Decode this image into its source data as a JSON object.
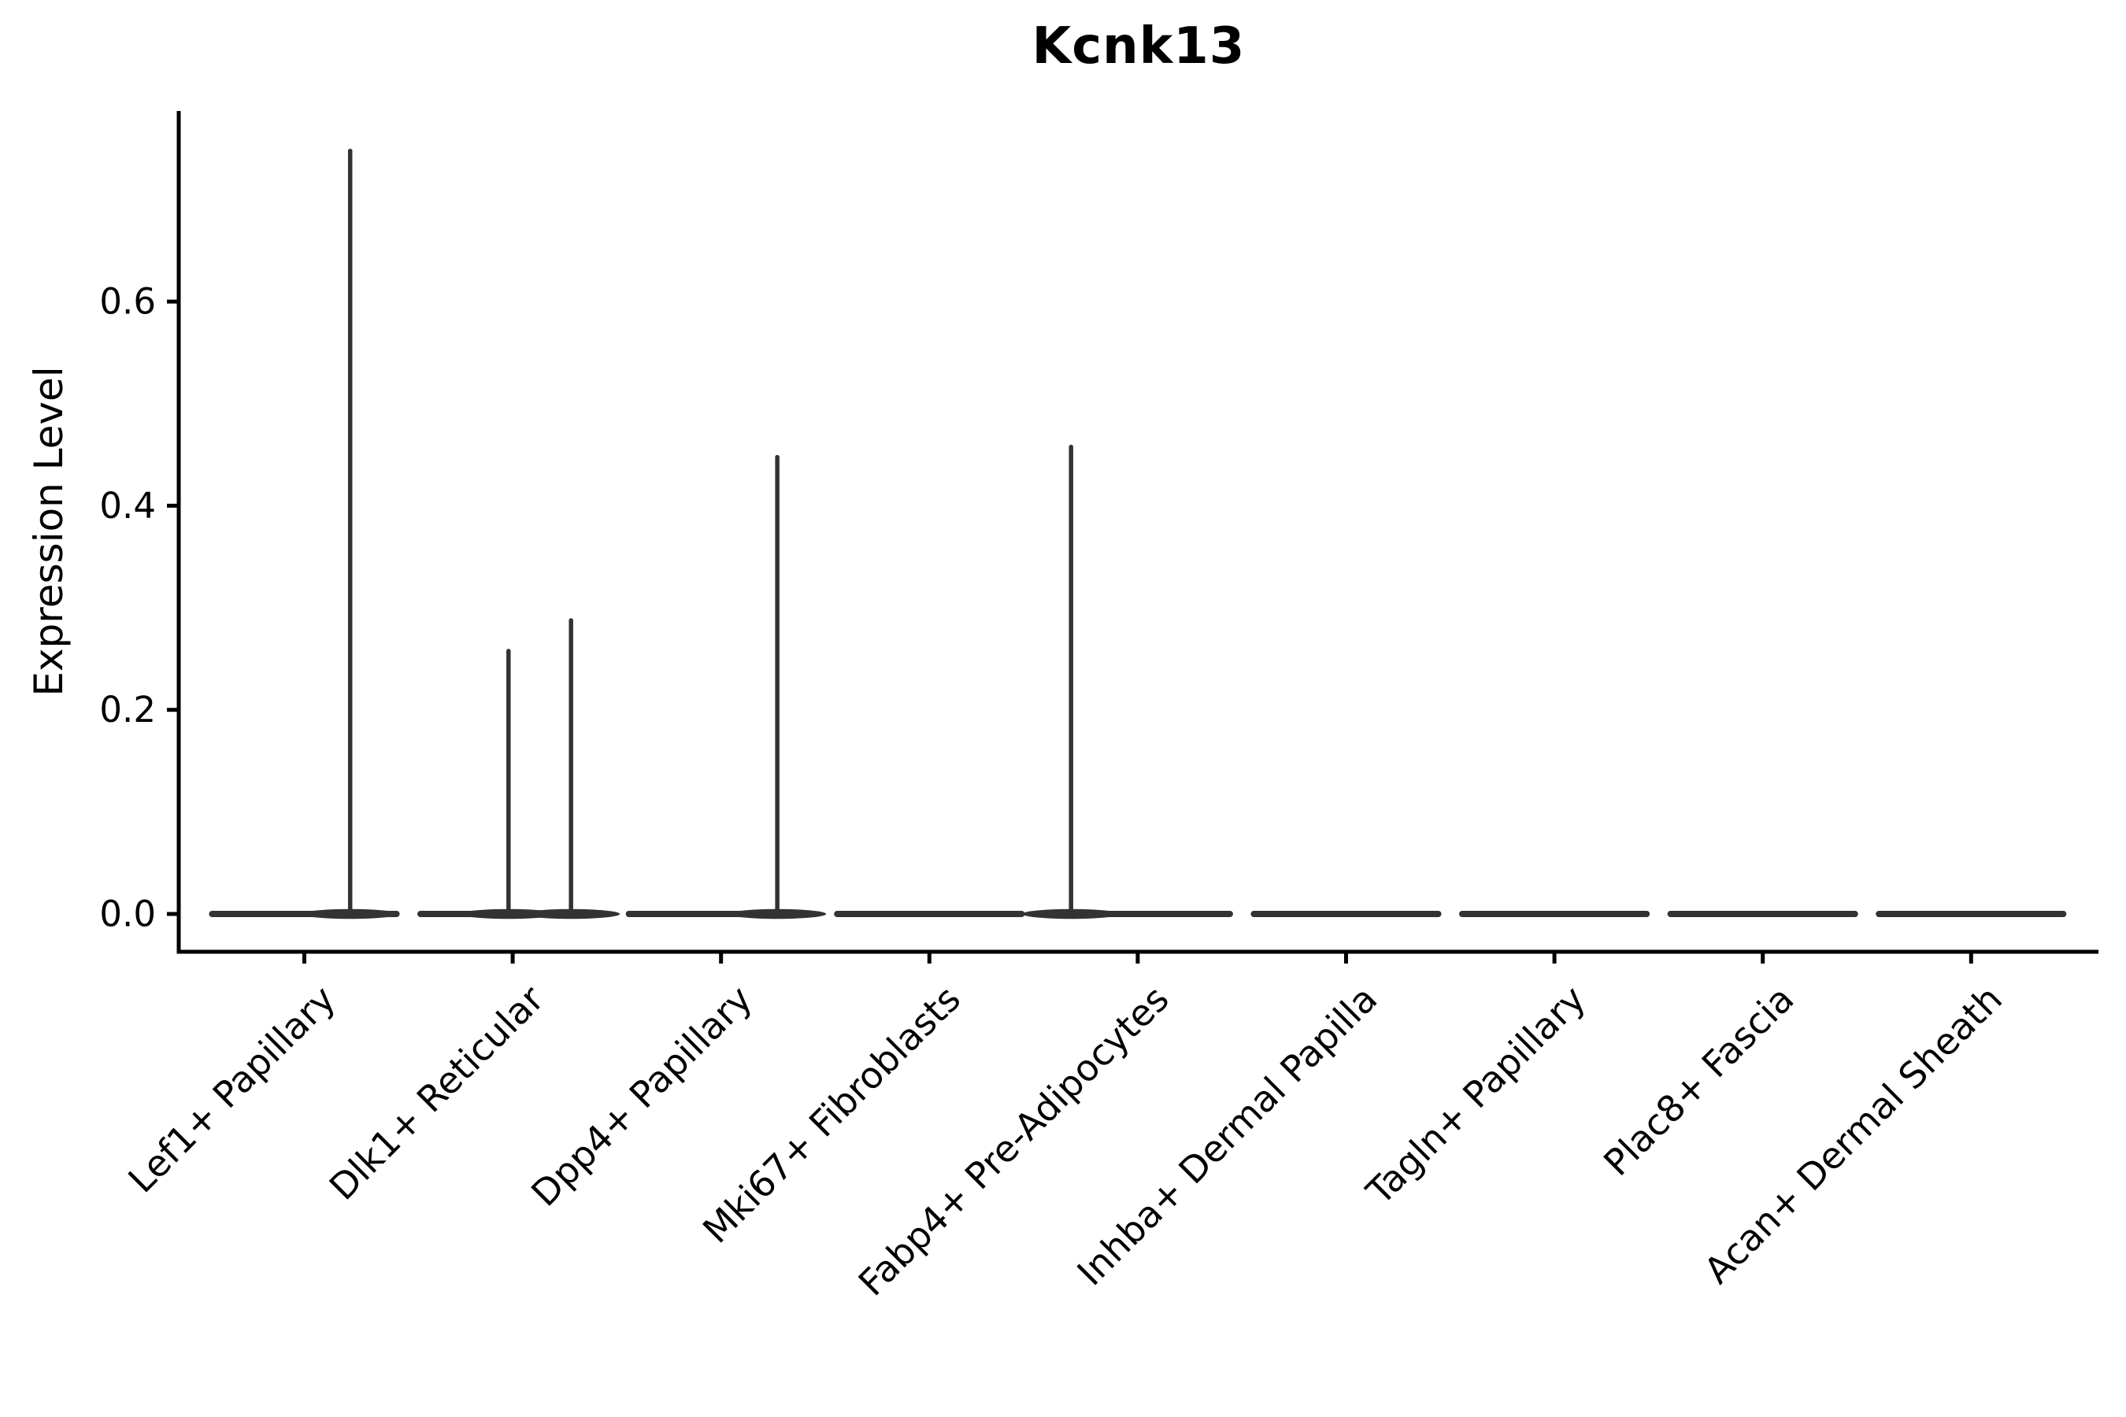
{
  "title": "Kcnk13",
  "chart_data": {
    "type": "violin",
    "title": "Kcnk13",
    "xlabel": "",
    "ylabel": "Expression Level",
    "ylim": [
      -0.037,
      0.787
    ],
    "yticks": [
      0.0,
      0.2,
      0.4,
      0.6
    ],
    "ytick_labels": [
      "0.0",
      "0.2",
      "0.4",
      "0.6"
    ],
    "grid": false,
    "legend": null,
    "categories": [
      "Lef1+ Papillary",
      "Dlk1+ Reticular",
      "Dpp4+ Papillary",
      "Mki67+ Fibroblasts",
      "Fabp4+ Pre-Adipocytes",
      "Inhba+ Dermal Papilla",
      "Tagln+ Papillary",
      "Plac8+ Fascia",
      "Acan+ Dermal Sheath"
    ],
    "series": [
      {
        "category": "Lef1+ Papillary",
        "baseline_value": 0.0,
        "spikes": [
          {
            "x_offset": 0.22,
            "value": 0.75
          }
        ]
      },
      {
        "category": "Dlk1+ Reticular",
        "baseline_value": 0.0,
        "spikes": [
          {
            "x_offset": -0.02,
            "value": 0.26
          },
          {
            "x_offset": 0.28,
            "value": 0.29
          }
        ]
      },
      {
        "category": "Dpp4+ Papillary",
        "baseline_value": 0.0,
        "spikes": [
          {
            "x_offset": 0.27,
            "value": 0.45
          }
        ]
      },
      {
        "category": "Mki67+ Fibroblasts",
        "baseline_value": 0.0,
        "spikes": []
      },
      {
        "category": "Fabp4+ Pre-Adipocytes",
        "baseline_value": 0.0,
        "spikes": [
          {
            "x_offset": -0.32,
            "value": 0.46
          }
        ]
      },
      {
        "category": "Inhba+ Dermal Papilla",
        "baseline_value": 0.0,
        "spikes": []
      },
      {
        "category": "Tagln+ Papillary",
        "baseline_value": 0.0,
        "spikes": []
      },
      {
        "category": "Plac8+ Fascia",
        "baseline_value": 0.0,
        "spikes": []
      },
      {
        "category": "Acan+ Dermal Sheath",
        "baseline_value": 0.0,
        "spikes": []
      }
    ],
    "violin_width_ratio": 0.915,
    "colors": {
      "violin": "#333333",
      "axis": "#000000",
      "text": "#000000",
      "background": "#ffffff"
    }
  }
}
